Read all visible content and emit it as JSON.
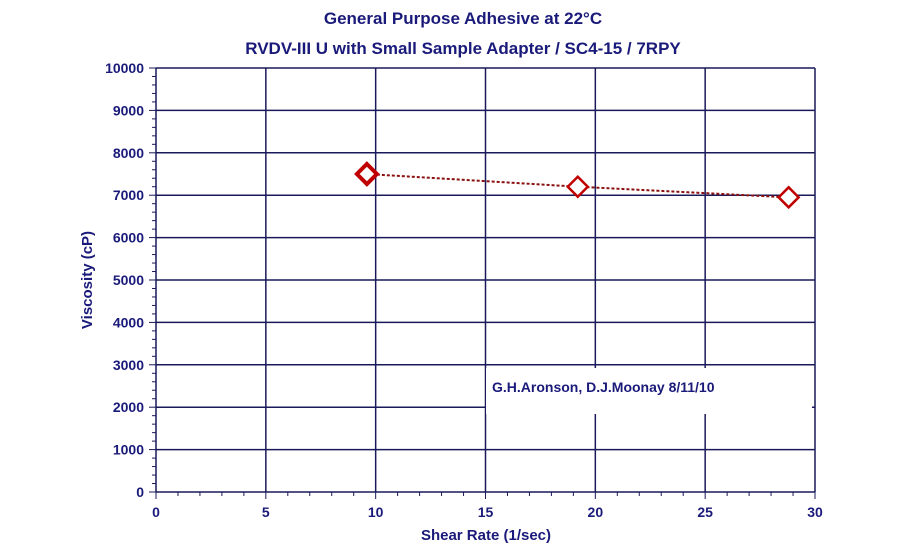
{
  "chart_data": {
    "type": "line",
    "title": "General Purpose Adhesive at 22°C",
    "subtitle": "RVDV-III U with Small Sample Adapter / SC4-15 / 7RPY",
    "xlabel": "Shear Rate (1/sec)",
    "ylabel": "Viscosity (cP)",
    "xlim": [
      0,
      30
    ],
    "ylim": [
      0,
      10000
    ],
    "xticks": [
      0,
      5,
      10,
      15,
      20,
      25,
      30
    ],
    "yticks": [
      0,
      1000,
      2000,
      3000,
      4000,
      5000,
      6000,
      7000,
      8000,
      9000,
      10000
    ],
    "grid": true,
    "annotation": "G.H.Aronson, D.J.Moonay 8/11/10",
    "series": [
      {
        "name": "Viscosity",
        "color": "#c00000",
        "marker": "diamond",
        "line": "dotted",
        "x": [
          9.6,
          19.2,
          28.8
        ],
        "y": [
          7500,
          7200,
          6950
        ]
      }
    ],
    "colors": {
      "text": "#1a1a7a",
      "grid": "#1a1a5a",
      "series": "#c00000"
    }
  }
}
